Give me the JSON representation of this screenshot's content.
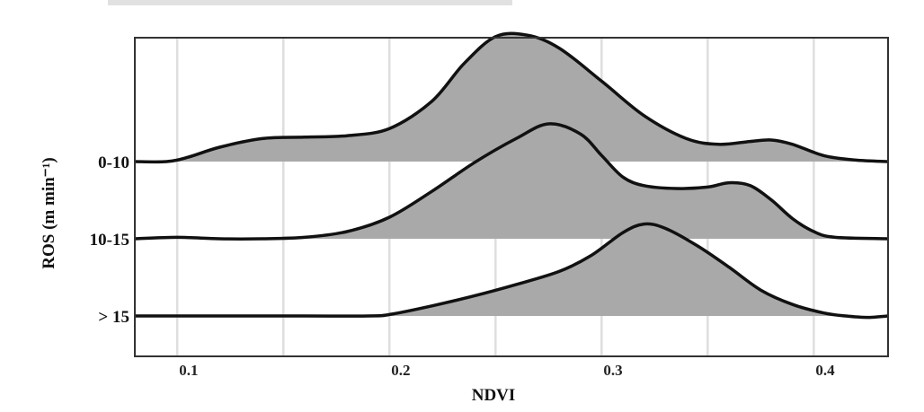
{
  "chart_data": {
    "type": "area",
    "subtype": "ridgeline-density",
    "xlabel": "NDVI",
    "ylabel": "ROS (m min⁻¹)",
    "xlim": [
      0.08,
      0.435
    ],
    "x_ticks": [
      {
        "value": 0.1,
        "label": "0.1"
      },
      {
        "value": 0.2,
        "label": "0.2"
      },
      {
        "value": 0.3,
        "label": "0.3"
      },
      {
        "value": 0.4,
        "label": "0.4"
      }
    ],
    "x_minor_gridlines": [
      0.15,
      0.25,
      0.35
    ],
    "grid": true,
    "background": "#ffffff",
    "fill_color": "#a9a9a9",
    "line_color": "#111111",
    "series": [
      {
        "name": "0-10",
        "points": [
          [
            0.08,
            0.0
          ],
          [
            0.095,
            0.0
          ],
          [
            0.105,
            0.03
          ],
          [
            0.12,
            0.1
          ],
          [
            0.14,
            0.16
          ],
          [
            0.16,
            0.17
          ],
          [
            0.18,
            0.18
          ],
          [
            0.2,
            0.23
          ],
          [
            0.22,
            0.42
          ],
          [
            0.235,
            0.68
          ],
          [
            0.25,
            0.87
          ],
          [
            0.265,
            0.88
          ],
          [
            0.28,
            0.79
          ],
          [
            0.3,
            0.56
          ],
          [
            0.32,
            0.32
          ],
          [
            0.34,
            0.16
          ],
          [
            0.355,
            0.12
          ],
          [
            0.37,
            0.14
          ],
          [
            0.38,
            0.15
          ],
          [
            0.39,
            0.12
          ],
          [
            0.405,
            0.04
          ],
          [
            0.42,
            0.01
          ],
          [
            0.435,
            0.0
          ]
        ]
      },
      {
        "name": "10-15",
        "points": [
          [
            0.08,
            0.0
          ],
          [
            0.1,
            0.01
          ],
          [
            0.12,
            0.0
          ],
          [
            0.14,
            0.0
          ],
          [
            0.16,
            0.01
          ],
          [
            0.18,
            0.05
          ],
          [
            0.2,
            0.15
          ],
          [
            0.22,
            0.33
          ],
          [
            0.24,
            0.53
          ],
          [
            0.26,
            0.7
          ],
          [
            0.275,
            0.8
          ],
          [
            0.29,
            0.73
          ],
          [
            0.3,
            0.58
          ],
          [
            0.31,
            0.43
          ],
          [
            0.32,
            0.37
          ],
          [
            0.335,
            0.35
          ],
          [
            0.35,
            0.36
          ],
          [
            0.36,
            0.39
          ],
          [
            0.37,
            0.37
          ],
          [
            0.38,
            0.27
          ],
          [
            0.39,
            0.14
          ],
          [
            0.4,
            0.05
          ],
          [
            0.41,
            0.01
          ],
          [
            0.435,
            0.0
          ]
        ]
      },
      {
        "name": "> 15",
        "points": [
          [
            0.08,
            0.0
          ],
          [
            0.12,
            0.0
          ],
          [
            0.16,
            0.0
          ],
          [
            0.19,
            0.0
          ],
          [
            0.2,
            0.01
          ],
          [
            0.22,
            0.07
          ],
          [
            0.24,
            0.14
          ],
          [
            0.26,
            0.22
          ],
          [
            0.28,
            0.31
          ],
          [
            0.295,
            0.42
          ],
          [
            0.31,
            0.58
          ],
          [
            0.32,
            0.64
          ],
          [
            0.33,
            0.61
          ],
          [
            0.345,
            0.49
          ],
          [
            0.36,
            0.34
          ],
          [
            0.375,
            0.18
          ],
          [
            0.39,
            0.08
          ],
          [
            0.405,
            0.02
          ],
          [
            0.415,
            0.0
          ],
          [
            0.425,
            -0.01
          ],
          [
            0.435,
            0.0
          ]
        ]
      }
    ]
  }
}
